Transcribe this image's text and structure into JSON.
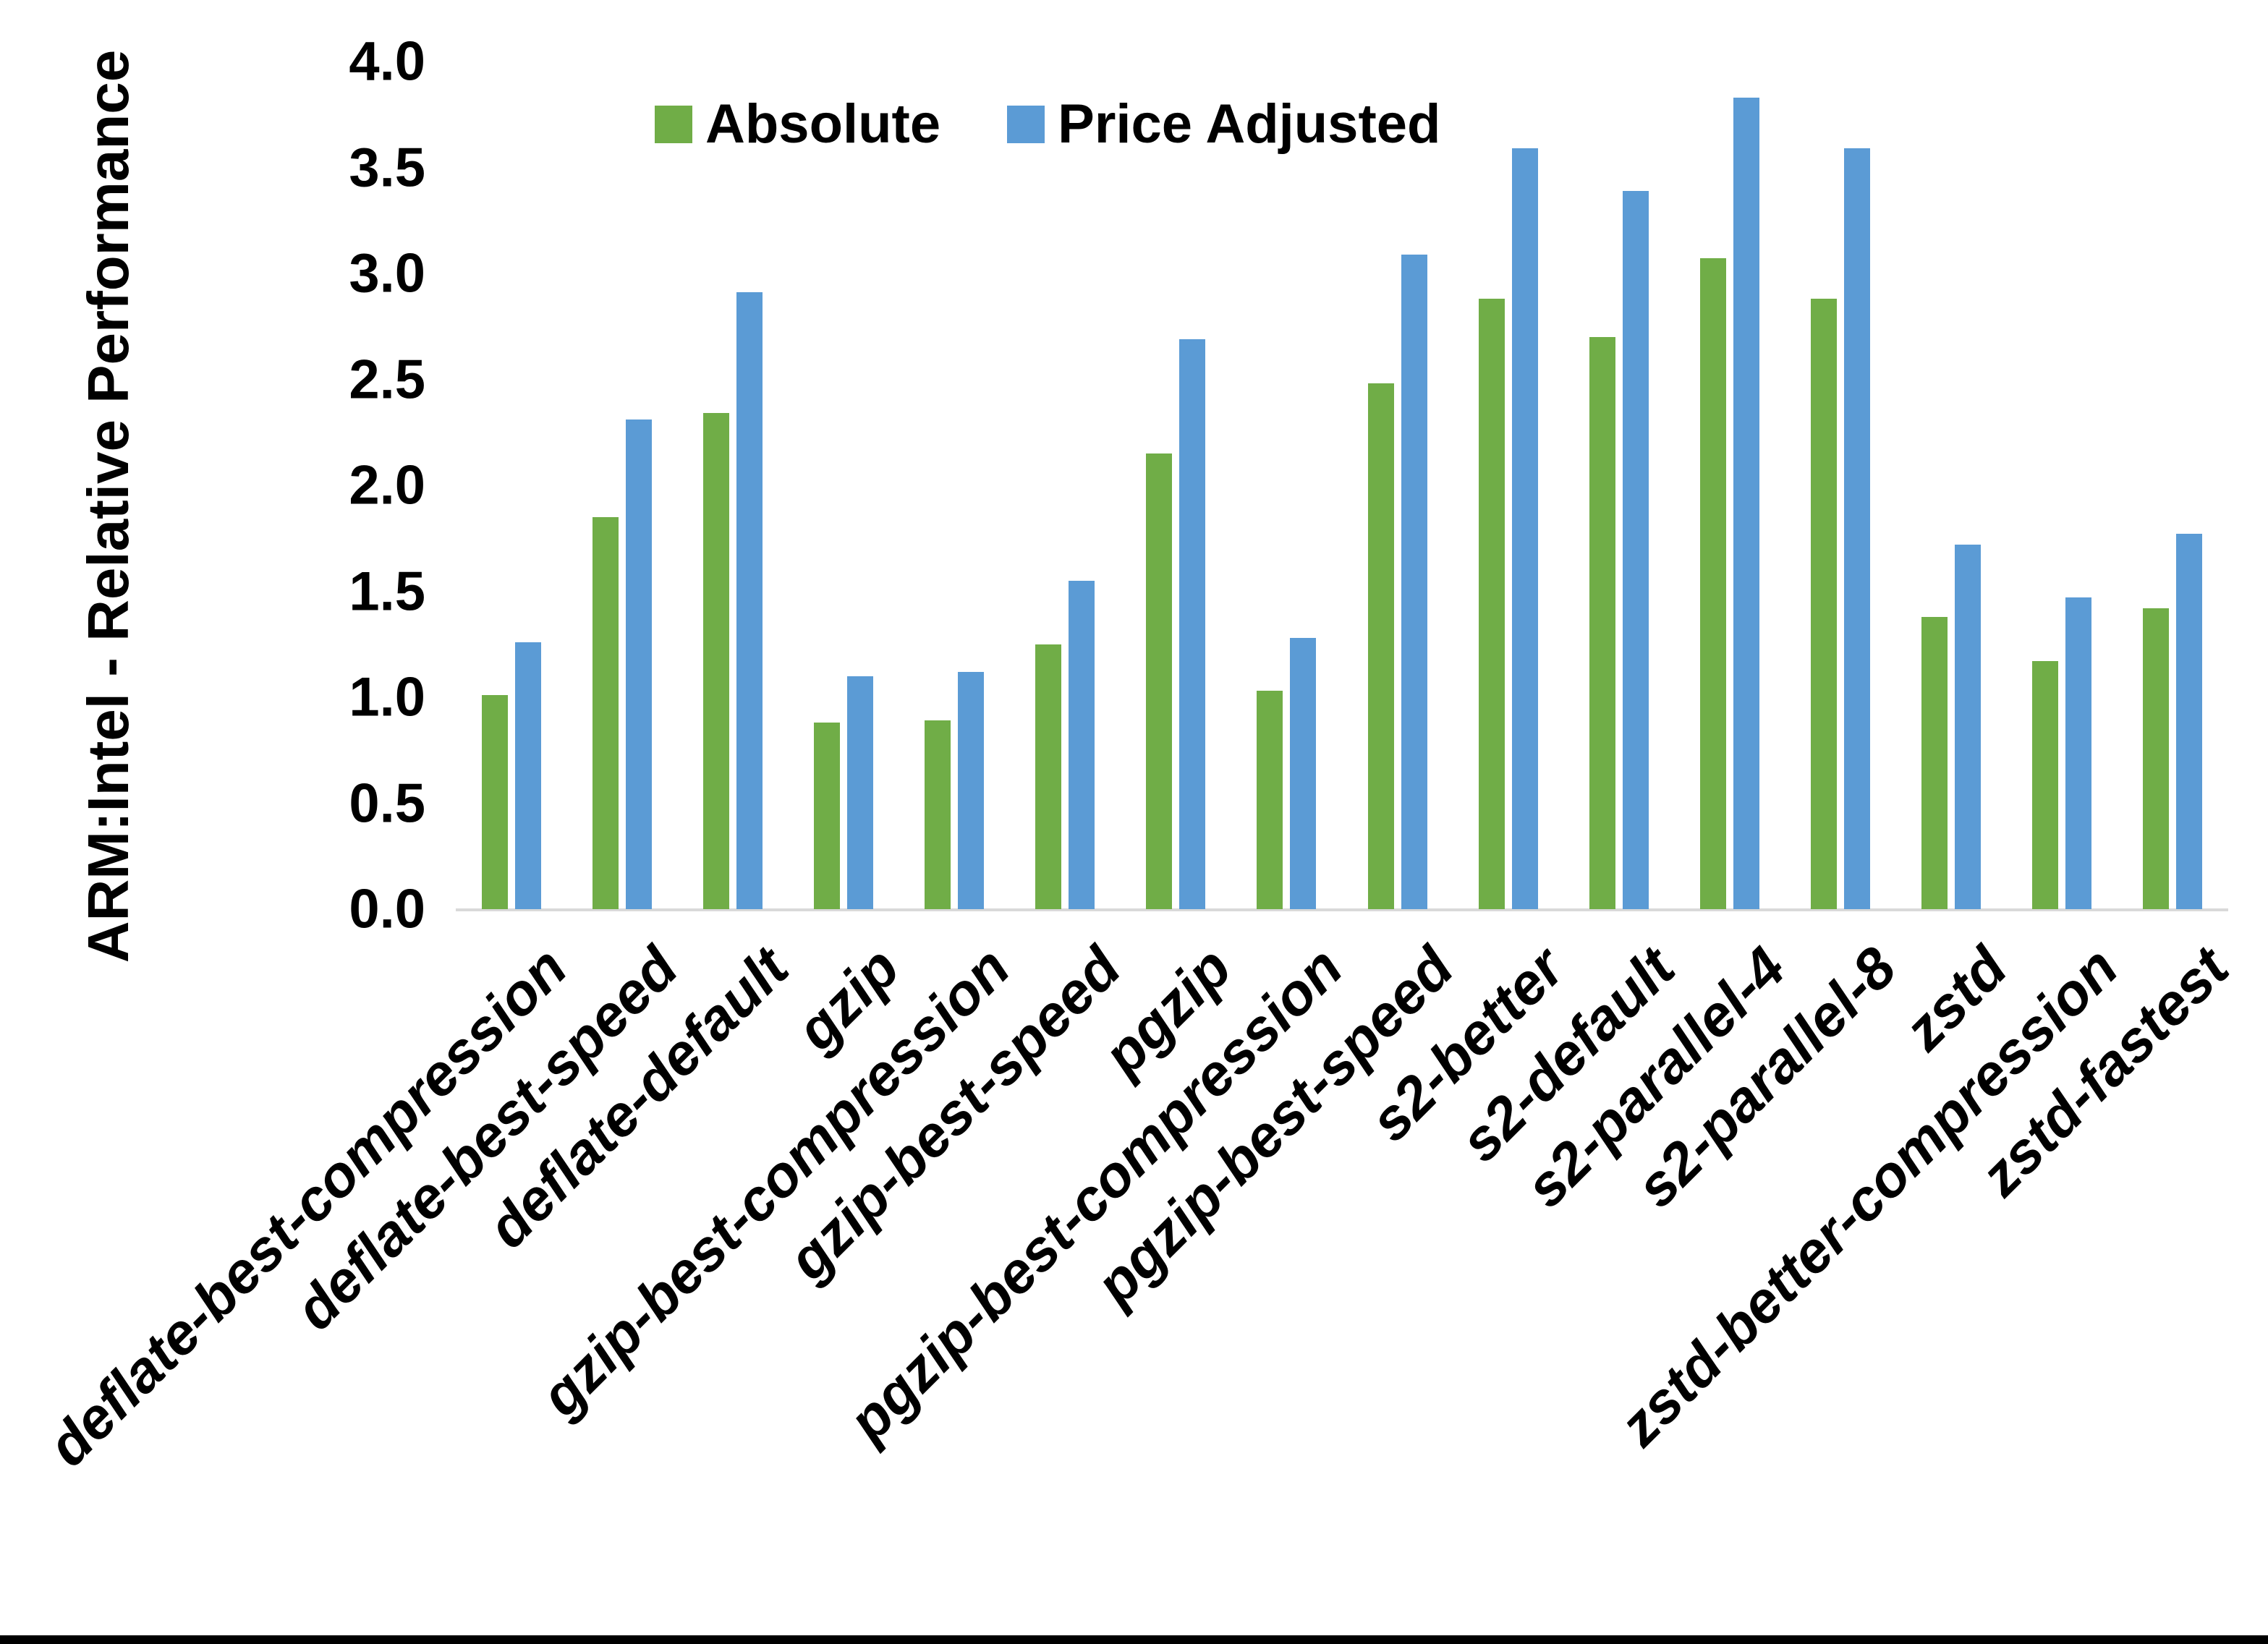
{
  "chart_data": {
    "type": "bar",
    "title": "",
    "xlabel": "",
    "ylabel": "ARM:Intel - Relative Performance",
    "ylim": [
      0.0,
      4.0
    ],
    "ytick_step": 0.5,
    "yticks": [
      "4.0",
      "3.5",
      "3.0",
      "2.5",
      "2.0",
      "1.5",
      "1.0",
      "0.5",
      "0.0"
    ],
    "grid": false,
    "legend_position": "top-center",
    "axis_line_color": "#d9d9d9",
    "categories": [
      "deflate-best-compression",
      "deflate-best-speed",
      "deflate-default",
      "gzip",
      "gzip-best-compression",
      "gzip-best-speed",
      "pgzip",
      "pgzip-best-compression",
      "pgzip-best-speed",
      "s2-better",
      "s2-default",
      "s2-parallel-4",
      "s2-parallel-8",
      "zstd",
      "zstd-better-compression",
      "zstd-fastest"
    ],
    "series": [
      {
        "name": "Absolute",
        "color": "#70AD47",
        "values": [
          1.01,
          1.85,
          2.34,
          0.88,
          0.89,
          1.25,
          2.15,
          1.03,
          2.48,
          2.88,
          2.7,
          3.07,
          2.88,
          1.38,
          1.17,
          1.42
        ]
      },
      {
        "name": "Price Adjusted",
        "color": "#5B9BD5",
        "values": [
          1.26,
          2.31,
          2.91,
          1.1,
          1.12,
          1.55,
          2.69,
          1.28,
          3.09,
          3.59,
          3.39,
          3.83,
          3.59,
          1.72,
          1.47,
          1.77
        ]
      }
    ]
  }
}
